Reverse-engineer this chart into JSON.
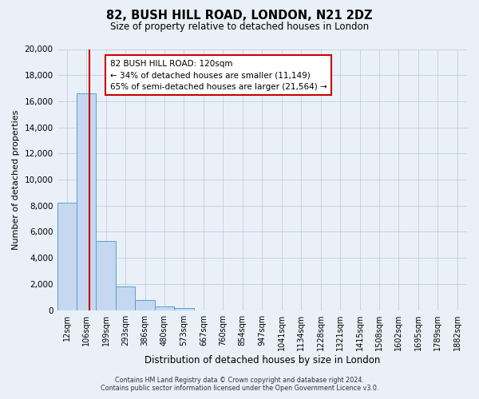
{
  "title": "82, BUSH HILL ROAD, LONDON, N21 2DZ",
  "subtitle": "Size of property relative to detached houses in London",
  "xlabel": "Distribution of detached houses by size in London",
  "ylabel": "Number of detached properties",
  "bar_color": "#c5d8f0",
  "bar_edge_color": "#5a9fd4",
  "bin_labels": [
    "12sqm",
    "106sqm",
    "199sqm",
    "293sqm",
    "386sqm",
    "480sqm",
    "573sqm",
    "667sqm",
    "760sqm",
    "854sqm",
    "947sqm",
    "1041sqm",
    "1134sqm",
    "1228sqm",
    "1321sqm",
    "1415sqm",
    "1508sqm",
    "1602sqm",
    "1695sqm",
    "1789sqm",
    "1882sqm"
  ],
  "bar_heights": [
    8200,
    16600,
    5300,
    1800,
    750,
    300,
    150,
    0,
    0,
    0,
    0,
    0,
    0,
    0,
    0,
    0,
    0,
    0,
    0,
    0,
    0
  ],
  "ylim": [
    0,
    20000
  ],
  "yticks": [
    0,
    2000,
    4000,
    6000,
    8000,
    10000,
    12000,
    14000,
    16000,
    18000,
    20000
  ],
  "annotation_title": "82 BUSH HILL ROAD: 120sqm",
  "annotation_line1": "← 34% of detached houses are smaller (11,149)",
  "annotation_line2": "65% of semi-detached houses are larger (21,564) →",
  "annotation_box_color": "#ffffff",
  "annotation_box_edge": "#cc0000",
  "red_line_color": "#cc0000",
  "red_line_x": 0.57,
  "footer_line1": "Contains HM Land Registry data © Crown copyright and database right 2024.",
  "footer_line2": "Contains public sector information licensed under the Open Government Licence v3.0.",
  "background_color": "#eaf0f8",
  "plot_background": "#eaf0f8"
}
